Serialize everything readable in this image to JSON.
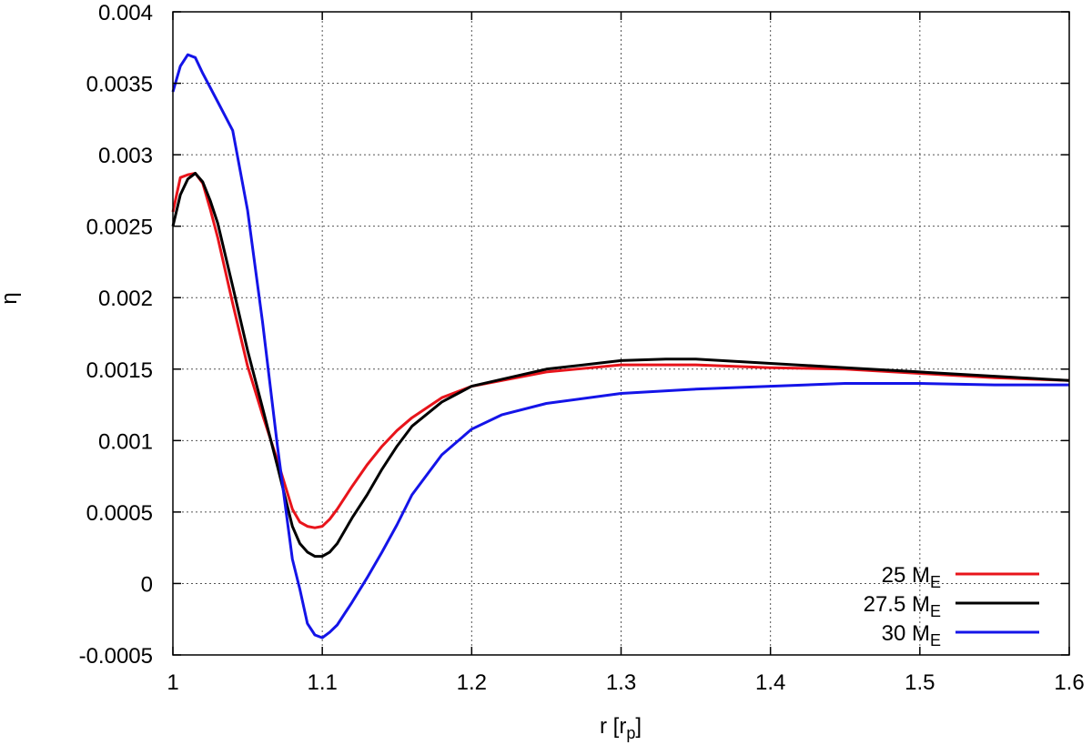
{
  "chart_data": {
    "type": "line",
    "title": "",
    "xlabel": "r [r",
    "xlabel_sub": "p",
    "xlabel_close": "]",
    "ylabel": "η",
    "xlim": [
      1.0,
      1.6
    ],
    "ylim": [
      -0.0005,
      0.004
    ],
    "xticks": [
      1,
      1.1,
      1.2,
      1.3,
      1.4,
      1.5,
      1.6
    ],
    "xtick_labels": [
      "1",
      "1.1",
      "1.2",
      "1.3",
      "1.4",
      "1.5",
      "1.6"
    ],
    "yticks": [
      -0.0005,
      0,
      0.0005,
      0.001,
      0.0015,
      0.002,
      0.0025,
      0.003,
      0.0035,
      0.004
    ],
    "ytick_labels": [
      "-0.0005",
      "0",
      "0.0005",
      "0.001",
      "0.0015",
      "0.002",
      "0.0025",
      "0.003",
      "0.0035",
      "0.004"
    ],
    "grid": true,
    "legend_position": "bottom-right",
    "series": [
      {
        "name": "25 M",
        "name_sub": "E",
        "color": "#e8141b",
        "x": [
          1.0,
          1.005,
          1.01,
          1.015,
          1.02,
          1.025,
          1.03,
          1.04,
          1.05,
          1.06,
          1.07,
          1.08,
          1.085,
          1.09,
          1.095,
          1.1,
          1.105,
          1.11,
          1.12,
          1.13,
          1.14,
          1.15,
          1.16,
          1.18,
          1.2,
          1.25,
          1.3,
          1.35,
          1.4,
          1.45,
          1.5,
          1.55,
          1.6
        ],
        "y": [
          0.0026,
          0.00284,
          0.00286,
          0.00287,
          0.0028,
          0.00262,
          0.00242,
          0.00196,
          0.00152,
          0.00118,
          0.00086,
          0.00052,
          0.00043,
          0.0004,
          0.00039,
          0.0004,
          0.00045,
          0.00052,
          0.00068,
          0.00083,
          0.00096,
          0.00107,
          0.00116,
          0.0013,
          0.00138,
          0.00148,
          0.00153,
          0.00153,
          0.00151,
          0.0015,
          0.00147,
          0.00144,
          0.00142
        ]
      },
      {
        "name": "27.5 M",
        "name_sub": "E",
        "color": "#000000",
        "x": [
          1.0,
          1.005,
          1.01,
          1.015,
          1.02,
          1.025,
          1.03,
          1.04,
          1.05,
          1.06,
          1.07,
          1.08,
          1.085,
          1.09,
          1.095,
          1.1,
          1.105,
          1.11,
          1.12,
          1.13,
          1.14,
          1.15,
          1.16,
          1.18,
          1.2,
          1.25,
          1.3,
          1.33,
          1.35,
          1.4,
          1.45,
          1.5,
          1.55,
          1.6
        ],
        "y": [
          0.0025,
          0.00272,
          0.00283,
          0.00287,
          0.00281,
          0.00268,
          0.00252,
          0.00208,
          0.00163,
          0.00123,
          0.00082,
          0.0004,
          0.00028,
          0.00022,
          0.00019,
          0.00019,
          0.00022,
          0.00028,
          0.00046,
          0.00062,
          0.0008,
          0.00096,
          0.0011,
          0.00127,
          0.00138,
          0.0015,
          0.00156,
          0.00157,
          0.00157,
          0.00154,
          0.00151,
          0.00148,
          0.00145,
          0.00142
        ]
      },
      {
        "name": "30 M",
        "name_sub": "E",
        "color": "#1414e8",
        "x": [
          1.0,
          1.005,
          1.01,
          1.015,
          1.02,
          1.03,
          1.04,
          1.05,
          1.06,
          1.07,
          1.08,
          1.085,
          1.09,
          1.095,
          1.1,
          1.105,
          1.11,
          1.12,
          1.13,
          1.14,
          1.15,
          1.16,
          1.18,
          1.2,
          1.22,
          1.25,
          1.3,
          1.35,
          1.4,
          1.45,
          1.5,
          1.55,
          1.6
        ],
        "y": [
          0.00344,
          0.00362,
          0.0037,
          0.00368,
          0.00357,
          0.00337,
          0.00317,
          0.00261,
          0.00183,
          0.00096,
          0.00017,
          -4e-05,
          -0.00028,
          -0.00036,
          -0.00038,
          -0.00034,
          -0.00029,
          -0.00013,
          4e-05,
          0.00022,
          0.00041,
          0.00062,
          0.0009,
          0.00108,
          0.00118,
          0.00126,
          0.00133,
          0.00136,
          0.00138,
          0.0014,
          0.0014,
          0.00139,
          0.00139
        ]
      }
    ]
  }
}
